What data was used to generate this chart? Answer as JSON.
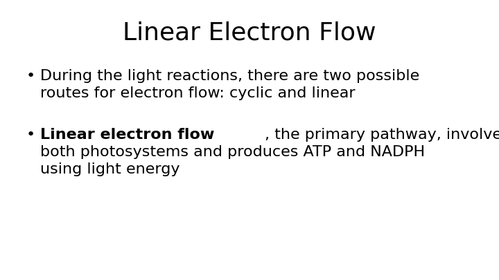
{
  "title": "Linear Electron Flow",
  "title_fontsize": 26,
  "background_color": "#ffffff",
  "text_color": "#000000",
  "bullet1_line1": "During the light reactions, there are two possible",
  "bullet1_line2": "routes for electron flow: cyclic and linear",
  "bullet2_bold": "Linear electron flow",
  "bullet2_rest_line1": ", the primary pathway, involves",
  "bullet2_line2": "both photosystems and produces ATP and NADPH",
  "bullet2_line3": "using light energy",
  "bullet_fontsize": 16,
  "font_family": "DejaVu Sans"
}
